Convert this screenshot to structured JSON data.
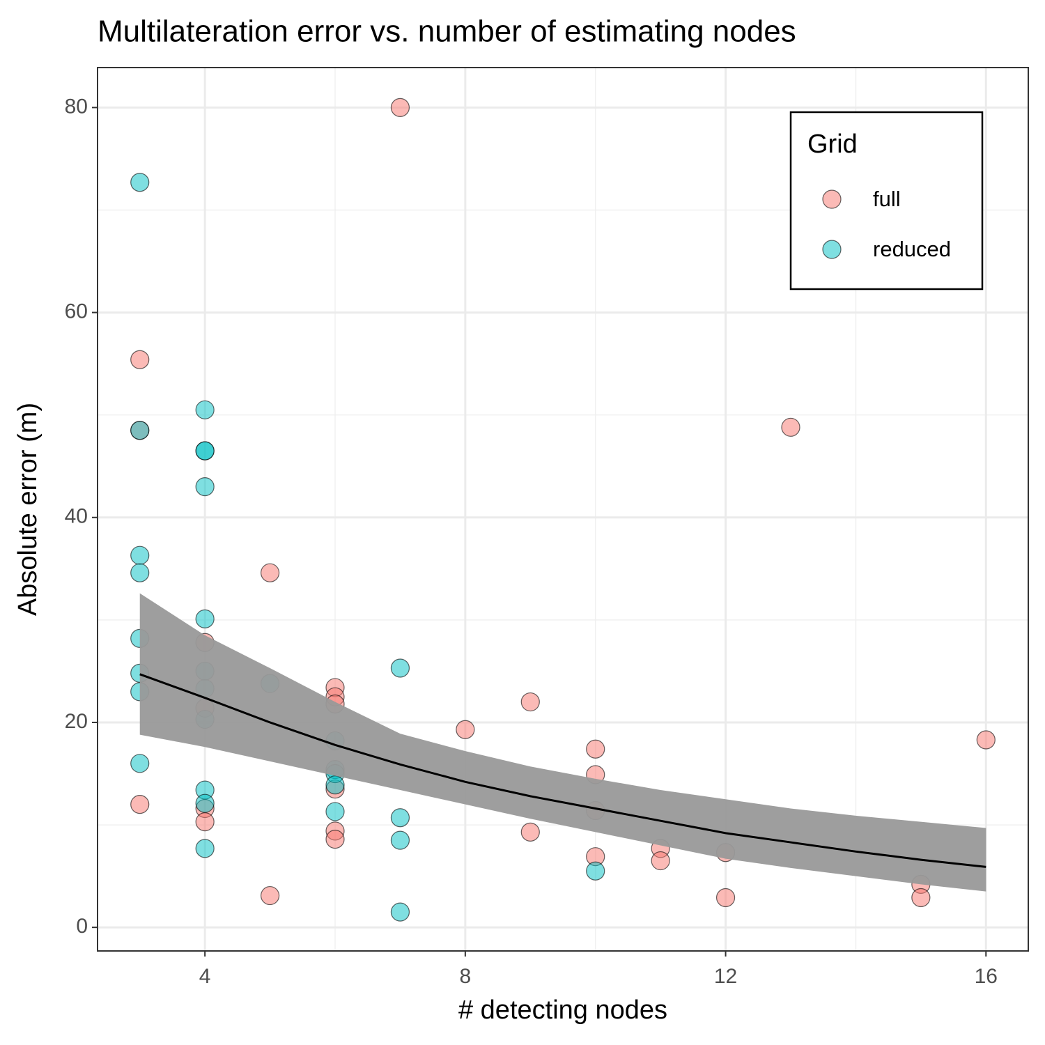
{
  "chart_data": {
    "type": "scatter",
    "title": "Multilateration error vs. number of estimating nodes",
    "x_label": "# detecting nodes",
    "y_label": "Absolute error (m)",
    "xlim": [
      2.35,
      16.65
    ],
    "ylim": [
      -2.3,
      83.9
    ],
    "xticks": [
      4,
      8,
      12,
      16
    ],
    "yticks": [
      0,
      20,
      40,
      60,
      80
    ],
    "x_minor_grid": [
      6,
      10,
      14
    ],
    "y_minor_grid": [
      10,
      30,
      50,
      70
    ],
    "grid": true,
    "point_opacity": 0.5,
    "legend": {
      "title": "Grid",
      "position": "top-right"
    },
    "series": [
      {
        "name": "full",
        "color": "#F8766D",
        "x": [
          7,
          3,
          3,
          3,
          4,
          4,
          4,
          4,
          5,
          5,
          6,
          6,
          6,
          6,
          6,
          6,
          8,
          9,
          9,
          10,
          10,
          10,
          10,
          11,
          11,
          12,
          12,
          13,
          15,
          15,
          16
        ],
        "values": [
          80.0,
          55.4,
          48.5,
          12.0,
          27.8,
          21.4,
          11.6,
          10.3,
          34.6,
          3.1,
          23.4,
          22.5,
          21.8,
          13.5,
          9.4,
          8.6,
          19.3,
          22.0,
          9.3,
          17.4,
          14.9,
          11.4,
          6.9,
          7.7,
          6.5,
          7.3,
          2.9,
          48.8,
          4.2,
          2.9,
          18.3
        ]
      },
      {
        "name": "reduced",
        "color": "#00BFC4",
        "x": [
          3,
          3,
          3,
          3,
          3,
          3,
          3,
          3,
          4,
          4,
          4,
          4,
          4,
          4,
          4,
          4,
          4,
          4,
          4,
          5,
          6,
          6,
          6,
          6,
          6,
          7,
          7,
          7,
          7,
          10
        ],
        "values": [
          72.7,
          48.5,
          36.3,
          34.6,
          28.2,
          24.8,
          23.0,
          16.0,
          50.5,
          46.5,
          46.5,
          43.0,
          30.1,
          25.0,
          23.3,
          20.3,
          13.4,
          12.1,
          7.7,
          23.8,
          18.2,
          15.4,
          15.0,
          13.9,
          11.3,
          25.3,
          10.7,
          8.5,
          1.5,
          5.5
        ]
      }
    ],
    "fit": {
      "color": "#000000",
      "band_color": "#999999",
      "x": [
        3,
        4,
        5,
        6,
        7,
        8,
        9,
        10,
        11,
        12,
        13,
        14,
        15,
        16
      ],
      "values": [
        24.7,
        22.4,
        20.0,
        17.8,
        15.9,
        14.2,
        12.8,
        11.6,
        10.4,
        9.2,
        8.3,
        7.4,
        6.6,
        5.9
      ],
      "lower": [
        18.8,
        17.6,
        16.2,
        14.8,
        13.4,
        12.0,
        10.6,
        9.3,
        8.0,
        6.7,
        5.8,
        5.0,
        4.2,
        3.5
      ],
      "upper": [
        32.6,
        28.5,
        25.3,
        22.0,
        18.9,
        17.2,
        15.7,
        14.5,
        13.4,
        12.5,
        11.6,
        10.9,
        10.3,
        9.7
      ]
    }
  }
}
